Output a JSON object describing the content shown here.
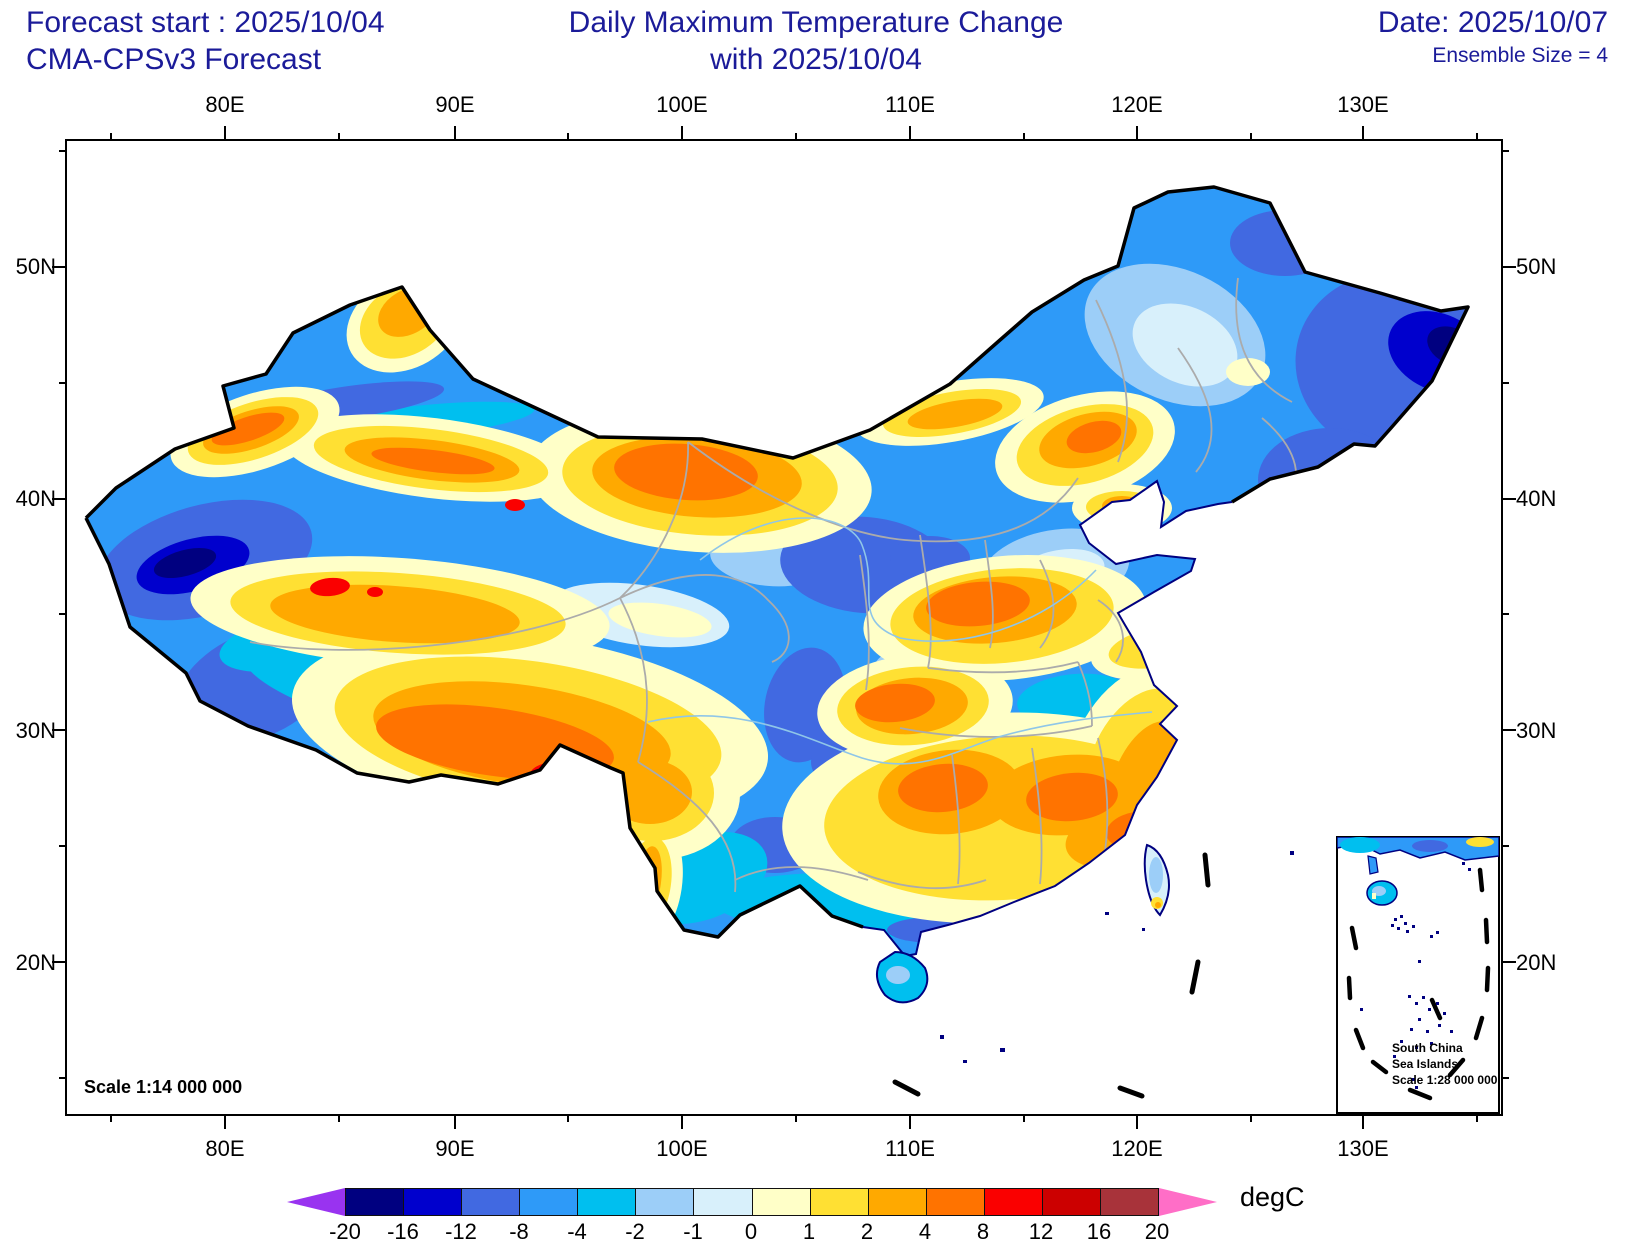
{
  "header": {
    "forecast_start": "Forecast start : 2025/10/04",
    "model": "CMA-CPSv3 Forecast",
    "title_line1": "Daily Maximum Temperature Change",
    "title_line2": "with 2025/10/04",
    "date": "Date: 2025/10/07",
    "ensemble": "Ensemble Size = 4",
    "text_color": "#1b1b99"
  },
  "map": {
    "scale_label": "Scale 1:14 000 000",
    "inset": {
      "line1": "South China",
      "line2": "Sea Islands",
      "line3": "Scale 1:28 000 000"
    },
    "axes": {
      "lon": [
        "80E",
        "90E",
        "100E",
        "110E",
        "120E",
        "130E"
      ],
      "lat": [
        "50N",
        "40N",
        "30N",
        "20N"
      ]
    }
  },
  "colorbar": {
    "unit_label": "degC",
    "tick_labels": [
      "-20",
      "-16",
      "-12",
      "-8",
      "-4",
      "-2",
      "-1",
      "0",
      "1",
      "2",
      "4",
      "8",
      "12",
      "16",
      "20"
    ],
    "levels": [
      -20,
      -16,
      -12,
      -8,
      -4,
      -2,
      -1,
      0,
      1,
      2,
      4,
      8,
      12,
      16,
      20
    ],
    "segment_colors": [
      "#000080",
      "#0000CD",
      "#4169E1",
      "#2E9AF8",
      "#00BFEF",
      "#9CCEF8",
      "#D8F0FB",
      "#FFFFC8",
      "#FFE033",
      "#FFA900",
      "#FF7300",
      "#FA0000",
      "#CC0000",
      "#A8333A"
    ],
    "below_color": "#9933F0",
    "above_color": "#FF6EC7"
  }
}
